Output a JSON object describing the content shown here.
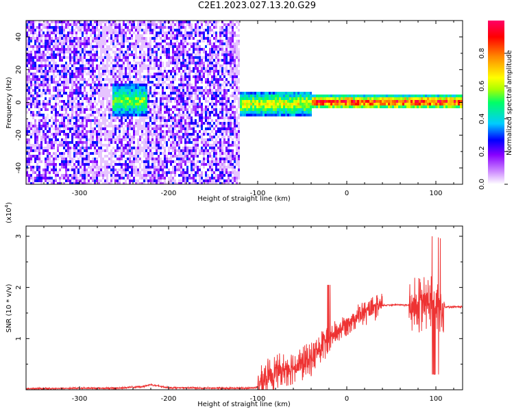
{
  "title": "C2E1.2023.027.13.20.G29",
  "chart_data": [
    {
      "type": "heatmap",
      "title": "",
      "xlabel": "Height of straight line (km)",
      "ylabel": "Frequency (Hz)",
      "xlim": [
        -360,
        130
      ],
      "ylim": [
        -50,
        50
      ],
      "xticks": [
        -300,
        -200,
        -100,
        0,
        100
      ],
      "yticks": [
        -40,
        -20,
        0,
        20,
        40
      ],
      "colorbar": {
        "label": "Normalized spectral amplitude",
        "range": [
          0.0,
          1.0
        ],
        "ticks": [
          "0.0",
          "0.2",
          "0.4",
          "0.6",
          "0.8"
        ],
        "colors": [
          "#ffffff",
          "#cc88ff",
          "#8800ff",
          "#0000ff",
          "#00ccff",
          "#00ff66",
          "#aaff00",
          "#ffff00",
          "#ff8800",
          "#ff0000",
          "#ff0066"
        ]
      },
      "regions": [
        {
          "x": [
            -360,
            -120
          ],
          "description_value": "broadband noise",
          "freq_spread": [
            -50,
            50
          ],
          "amplitude": [
            0.0,
            0.3
          ]
        },
        {
          "x": [
            -265,
            -225
          ],
          "freq_center": 2,
          "freq_spread": [
            -10,
            10
          ],
          "amplitude": [
            0.3,
            0.6
          ]
        },
        {
          "x": [
            -120,
            -40
          ],
          "freq_center": 0,
          "freq_spread": [
            -8,
            8
          ],
          "amplitude": [
            0.3,
            0.7
          ]
        },
        {
          "x": [
            -40,
            130
          ],
          "freq_center": 1,
          "freq_spread": [
            -3,
            4
          ],
          "amplitude": [
            0.5,
            1.0
          ]
        }
      ]
    },
    {
      "type": "line",
      "title": "",
      "xlabel": "Height of straight line (km)",
      "ylabel": "SNR (10 * v/v)",
      "yscale_label": "(x10",
      "yscale_exp": "4",
      "xlim": [
        -360,
        130
      ],
      "ylim": [
        0,
        3.2
      ],
      "xticks": [
        -300,
        -200,
        -100,
        0,
        100
      ],
      "yticks": [
        1,
        2,
        3
      ],
      "color": "#ee3333",
      "series": [
        {
          "x": [
            -360,
            -300,
            -260,
            -230,
            -220,
            -200,
            -150,
            -110,
            -100,
            -90,
            -80,
            -70,
            -60,
            -50,
            -40,
            -30,
            -20,
            -10,
            0,
            10,
            20,
            30,
            40,
            50,
            60,
            70,
            80,
            90,
            100,
            110,
            120,
            130
          ],
          "values": [
            0.02,
            0.03,
            0.03,
            0.06,
            0.1,
            0.04,
            0.03,
            0.03,
            0.05,
            0.25,
            0.35,
            0.4,
            0.45,
            0.5,
            0.6,
            0.8,
            1.0,
            1.15,
            1.3,
            1.42,
            1.5,
            1.58,
            1.65,
            1.66,
            1.66,
            1.65,
            1.65,
            1.7,
            1.7,
            1.62,
            1.62,
            1.62
          ]
        }
      ]
    }
  ]
}
